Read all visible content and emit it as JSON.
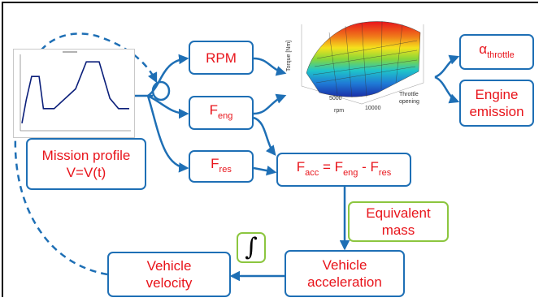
{
  "colors": {
    "box_border": "#1e6fb5",
    "box_border_green": "#8cc63f",
    "label_text": "#e8141b",
    "connector": "#1e6fb5"
  },
  "nodes": {
    "rpm": {
      "label": "RPM"
    },
    "f_eng": {
      "base": "F",
      "sub": "eng"
    },
    "f_res": {
      "base": "F",
      "sub": "res"
    },
    "mission_profile": {
      "line1": "Mission profile",
      "line2": "V=V(t)"
    },
    "f_acc": {
      "lhs_base": "F",
      "lhs_sub": "acc",
      "eq": " = ",
      "t1_base": "F",
      "t1_sub": "eng",
      "minus": " - ",
      "t2_base": "F",
      "t2_sub": "res"
    },
    "alpha_throttle": {
      "base": "α",
      "sub": "throttle"
    },
    "engine_emission": {
      "line1": "Engine",
      "line2": "emission"
    },
    "equivalent_mass": {
      "line1": "Equivalent",
      "line2": "mass"
    },
    "integral": {
      "symbol": "∫"
    },
    "vehicle_acceleration": {
      "line1": "Vehicle",
      "line2": "acceleration"
    },
    "vehicle_velocity": {
      "line1": "Vehicle",
      "line2": "velocity"
    }
  },
  "torque_map_axes": {
    "z_label": "Torque [Nm]",
    "x_label": "rpm",
    "y_label_line1": "Throttle",
    "y_label_line2": "opening",
    "x_ticks": [
      "5000",
      "10000"
    ]
  },
  "mission_plot": {
    "velocity_profile": [
      [
        0,
        0.08
      ],
      [
        0.04,
        0.4
      ],
      [
        0.09,
        0.72
      ],
      [
        0.16,
        0.72
      ],
      [
        0.2,
        0.28
      ],
      [
        0.3,
        0.28
      ],
      [
        0.5,
        0.55
      ],
      [
        0.6,
        0.92
      ],
      [
        0.72,
        0.92
      ],
      [
        0.82,
        0.42
      ],
      [
        0.9,
        0.28
      ],
      [
        1.0,
        0.28
      ]
    ]
  }
}
